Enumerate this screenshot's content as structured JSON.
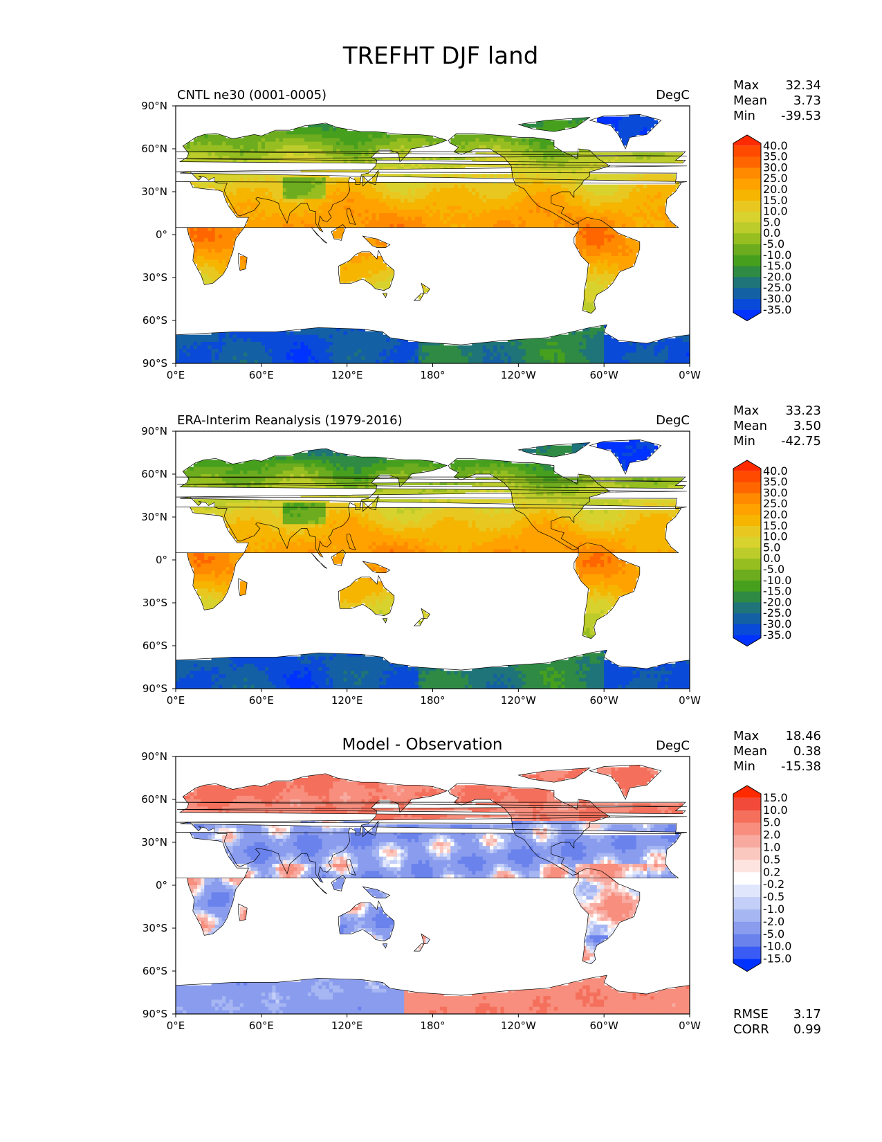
{
  "figure_title": "TREFHT DJF land",
  "chart_data": [
    {
      "type": "heatmap",
      "subtitle": "CNTL ne30 (0001-0005)",
      "units": "DegC",
      "stats": [
        {
          "label": "Max",
          "value": "32.34"
        },
        {
          "label": "Mean",
          "value": "3.73"
        },
        {
          "label": "Min",
          "value": "-39.53"
        }
      ],
      "xticks": [
        "0°E",
        "60°E",
        "120°E",
        "180°",
        "120°W",
        "60°W",
        "0°W"
      ],
      "yticks": [
        "90°N",
        "60°N",
        "30°N",
        "0°",
        "30°S",
        "60°S",
        "90°S"
      ],
      "xlim": [
        0,
        360
      ],
      "ylim": [
        -90,
        90
      ],
      "levels": [
        "40.0",
        "35.0",
        "30.0",
        "25.0",
        "20.0",
        "15.0",
        "10.0",
        "5.0",
        "0.0",
        "-5.0",
        "-10.0",
        "-15.0",
        "-20.0",
        "-25.0",
        "-30.0",
        "-35.0"
      ],
      "colors": [
        "#ff2a00",
        "#ff4a00",
        "#ff6600",
        "#ff8a00",
        "#ffa200",
        "#f5b500",
        "#e8c820",
        "#d8d22e",
        "#bccc2a",
        "#96be20",
        "#6cac1e",
        "#46a01e",
        "#2f8a44",
        "#1e7478",
        "#1460a4",
        "#0a4ad8",
        "#0033ff"
      ],
      "fields": {
        "high_lat_c": -25,
        "equator_c": 26,
        "antarctica_c": -30,
        "greenland_c": -36,
        "amp_c": 4
      }
    },
    {
      "type": "heatmap",
      "subtitle": "ERA-Interim Reanalysis (1979-2016)",
      "units": "DegC",
      "stats": [
        {
          "label": "Max",
          "value": "33.23"
        },
        {
          "label": "Mean",
          "value": "3.50"
        },
        {
          "label": "Min",
          "value": "-42.75"
        }
      ],
      "xticks": [
        "0°E",
        "60°E",
        "120°E",
        "180°",
        "120°W",
        "60°W",
        "0°W"
      ],
      "yticks": [
        "90°N",
        "60°N",
        "30°N",
        "0°",
        "30°S",
        "60°S",
        "90°S"
      ],
      "xlim": [
        0,
        360
      ],
      "ylim": [
        -90,
        90
      ],
      "levels": [
        "40.0",
        "35.0",
        "30.0",
        "25.0",
        "20.0",
        "15.0",
        "10.0",
        "5.0",
        "0.0",
        "-5.0",
        "-10.0",
        "-15.0",
        "-20.0",
        "-25.0",
        "-30.0",
        "-35.0"
      ],
      "colors": [
        "#ff2a00",
        "#ff4a00",
        "#ff6600",
        "#ff8a00",
        "#ffa200",
        "#f5b500",
        "#e8c820",
        "#d8d22e",
        "#bccc2a",
        "#96be20",
        "#6cac1e",
        "#46a01e",
        "#2f8a44",
        "#1e7478",
        "#1460a4",
        "#0a4ad8",
        "#0033ff"
      ],
      "fields": {
        "high_lat_c": -32,
        "equator_c": 25,
        "antarctica_c": -30,
        "greenland_c": -38,
        "amp_c": 4
      }
    },
    {
      "type": "heatmap",
      "subtitle": "Model - Observation",
      "units": "DegC",
      "stats": [
        {
          "label": "Max",
          "value": "18.46"
        },
        {
          "label": "Mean",
          "value": "0.38"
        },
        {
          "label": "Min",
          "value": "-15.38"
        }
      ],
      "extra_stats": [
        {
          "label": "RMSE",
          "value": "3.17"
        },
        {
          "label": "CORR",
          "value": "0.99"
        }
      ],
      "xticks": [
        "0°E",
        "60°E",
        "120°E",
        "180°",
        "120°W",
        "60°W",
        "0°W"
      ],
      "yticks": [
        "90°N",
        "60°N",
        "30°N",
        "0°",
        "30°S",
        "60°S",
        "90°S"
      ],
      "xlim": [
        0,
        360
      ],
      "ylim": [
        -90,
        90
      ],
      "levels": [
        "15.0",
        "10.0",
        "5.0",
        "2.0",
        "1.0",
        "0.5",
        "0.2",
        "-0.2",
        "-0.5",
        "-1.0",
        "-2.0",
        "-5.0",
        "-10.0",
        "-15.0"
      ],
      "colors": [
        "#ff2a00",
        "#f24a3a",
        "#f5705c",
        "#f78e7e",
        "#f8aaa0",
        "#fbc8c0",
        "#fde4e0",
        "#ffffff",
        "#e0e6fc",
        "#c4cff8",
        "#a6b6f2",
        "#8a9cee",
        "#6a82ec",
        "#3a5cf4",
        "#0033ff"
      ],
      "fields": {
        "diff": true
      }
    }
  ]
}
